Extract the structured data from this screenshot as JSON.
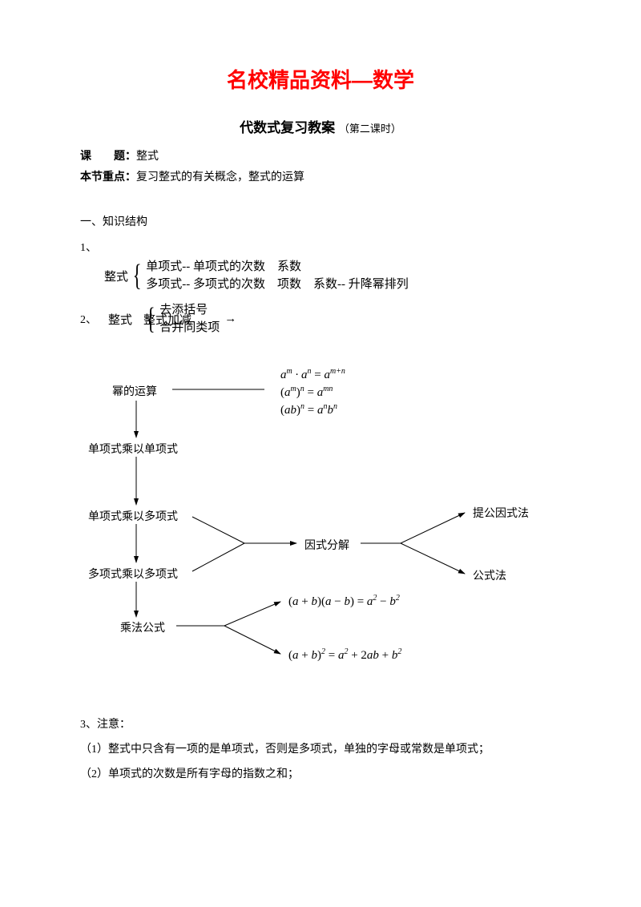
{
  "title_main": "名校精品资料—数学",
  "title_sub": "代数式复习教案",
  "title_sub_small": "（第二课时）",
  "row1_label": "课　　题：",
  "row1_value": "整式",
  "row2_label": "本节重点：",
  "row2_value": "复习整式的有关概念，整式的运算",
  "section1": "一、知识结构",
  "n1": "1、",
  "brace1_left": "整式",
  "brace1_line1": "单项式-- 单项式的次数　系数",
  "brace1_line2": "多项式-- 多项式的次数　项数　系数-- 升降幂排列",
  "n2": "2、",
  "brace2_left": "整式",
  "brace2_inner": "整式加减",
  "brace2_line1": "去添括号",
  "brace2_line2": "合并同类项",
  "brace2_arrow": "→",
  "diagram": {
    "power_ops": "幂的运算",
    "mono_mono": "单项式乘以单项式",
    "mono_poly": "单项式乘以多项式",
    "poly_poly": "多项式乘以多项式",
    "mul_formula": "乘法公式",
    "factorize": "因式分解",
    "factor_m1": "提公因式法",
    "factor_m2": "公式法",
    "eq1_html": "<span class='math'>a<span class='up'>m</span> · a<span class='up'>n</span> <span class='rm'>=</span> a<span class='up'>m+n</span></span>",
    "eq2_html": "<span class='math'><span class='rm'>(</span>a<span class='up'>m</span><span class='rm'>)</span><span class='up'>n</span> <span class='rm'>=</span> a<span class='up'>mn</span></span>",
    "eq3_html": "<span class='math'><span class='rm'>(</span>ab<span class='rm'>)</span><span class='up'>n</span> <span class='rm'>=</span> a<span class='up'>n</span>b<span class='up'>n</span></span>",
    "f1_html": "<span class='math'><span class='rm'>(</span>a <span class='rm'>+</span> b<span class='rm'>)(</span>a <span class='rm'>−</span> b<span class='rm'>)</span> <span class='rm'>=</span> a<span class='up'>2</span> <span class='rm'>−</span> b<span class='up'>2</span></span>",
    "f2_html": "<span class='math'><span class='rm'>(</span>a <span class='rm'>+</span> b<span class='rm'>)</span><span class='up'>2</span> <span class='rm'>=</span> a<span class='up'>2</span> <span class='rm'>+ 2</span>ab <span class='rm'>+</span> b<span class='up'>2</span></span>"
  },
  "n3": "3、注意：",
  "note1": "（1）整式中只含有一项的是单项式，否则是多项式，单独的字母或常数是单项式；",
  "note2": "（2）单项式的次数是所有字母的指数之和；",
  "colors": {
    "title": "#ff0000",
    "text": "#000000",
    "stroke": "#000000",
    "background": "#ffffff"
  }
}
